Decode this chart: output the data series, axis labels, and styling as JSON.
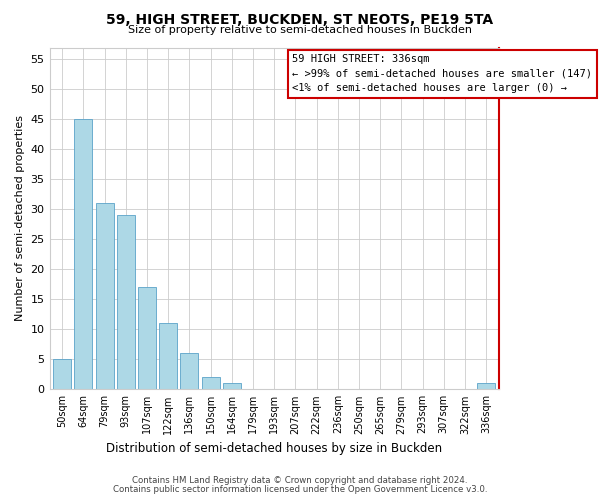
{
  "title": "59, HIGH STREET, BUCKDEN, ST NEOTS, PE19 5TA",
  "subtitle": "Size of property relative to semi-detached houses in Buckden",
  "xlabel": "Distribution of semi-detached houses by size in Buckden",
  "ylabel": "Number of semi-detached properties",
  "footer_line1": "Contains HM Land Registry data © Crown copyright and database right 2024.",
  "footer_line2": "Contains public sector information licensed under the Open Government Licence v3.0.",
  "bar_labels": [
    "50sqm",
    "64sqm",
    "79sqm",
    "93sqm",
    "107sqm",
    "122sqm",
    "136sqm",
    "150sqm",
    "164sqm",
    "179sqm",
    "193sqm",
    "207sqm",
    "222sqm",
    "236sqm",
    "250sqm",
    "265sqm",
    "279sqm",
    "293sqm",
    "307sqm",
    "322sqm",
    "336sqm"
  ],
  "bar_values": [
    5,
    45,
    31,
    29,
    17,
    11,
    6,
    2,
    1,
    0,
    0,
    0,
    0,
    0,
    0,
    0,
    0,
    0,
    0,
    0,
    1
  ],
  "bar_color": "#add8e6",
  "bar_edge_color": "#5ba3c9",
  "highlighted_bar_index": 20,
  "ylim": [
    0,
    57
  ],
  "yticks": [
    0,
    5,
    10,
    15,
    20,
    25,
    30,
    35,
    40,
    45,
    50,
    55
  ],
  "legend_title": "59 HIGH STREET: 336sqm",
  "legend_line1": "← >99% of semi-detached houses are smaller (147)",
  "legend_line2": "<1% of semi-detached houses are larger (0) →",
  "legend_box_facecolor": "#ffffff",
  "legend_box_edgecolor": "#cc0000",
  "right_spine_color": "#cc0000",
  "grid_color": "#cccccc",
  "background_color": "#ffffff",
  "title_fontsize": 10,
  "subtitle_fontsize": 8
}
